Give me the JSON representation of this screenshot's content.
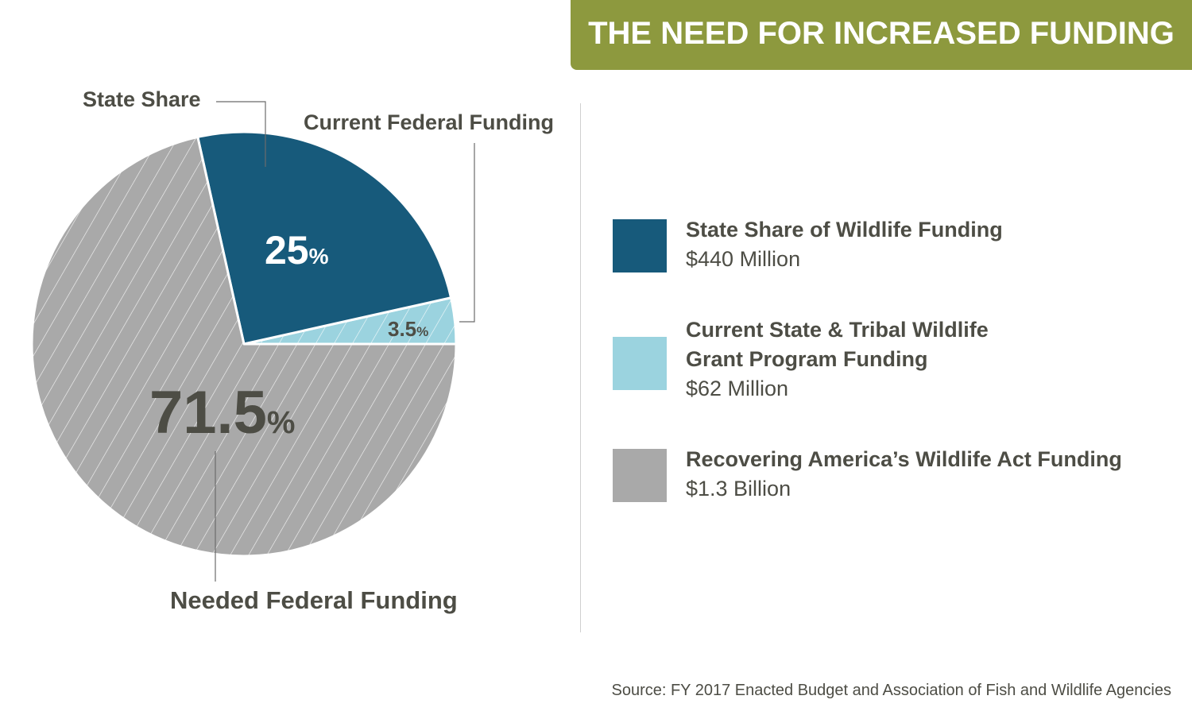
{
  "header": {
    "title": "THE NEED FOR INCREASED FUNDING"
  },
  "chart_data": {
    "type": "pie",
    "title": "THE NEED FOR INCREASED FUNDING",
    "slices": [
      {
        "name": "State Share",
        "callout": "State Share",
        "value": 25,
        "value_label": "25",
        "unit": "%",
        "color": "#175a7b",
        "hatched": false,
        "legend_label": "State Share of Wildlife Funding",
        "legend_value": "$440 Million"
      },
      {
        "name": "Current Federal Funding",
        "callout": "Current Federal Funding",
        "value": 3.5,
        "value_label": "3.5",
        "unit": "%",
        "color": "#9bd3df",
        "hatched": true,
        "legend_label": [
          "Current State & Tribal Wildlife",
          "Grant Program Funding"
        ],
        "legend_value": "$62 Million"
      },
      {
        "name": "Needed Federal Funding",
        "callout": "Needed Federal Funding",
        "value": 71.5,
        "value_label": "71.5",
        "unit": "%",
        "color": "#a9a9a9",
        "hatched": true,
        "legend_label": "Recovering America’s Wildlife Act Funding",
        "legend_value": "$1.3 Billion"
      }
    ],
    "legend_placement": "right"
  },
  "source": "Source: FY 2017 Enacted Budget and Association of Fish and Wildlife Agencies"
}
